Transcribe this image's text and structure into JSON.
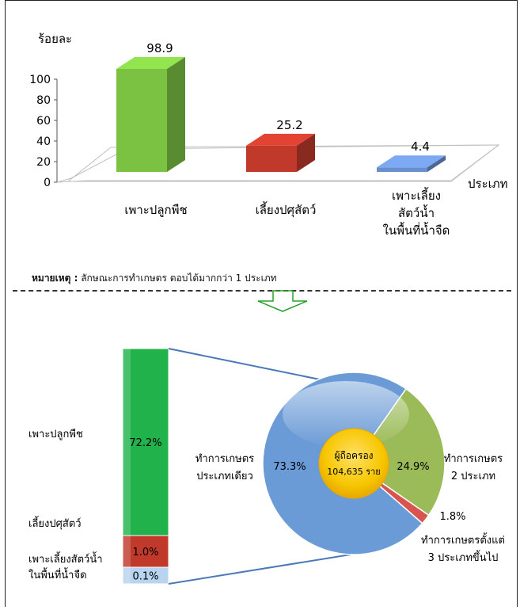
{
  "chart_data": [
    {
      "type": "bar",
      "ylabel": "ร้อยละ",
      "xlabel": "ประเภท",
      "ylim": [
        0,
        100
      ],
      "yticks": [
        0,
        20,
        40,
        60,
        80,
        100
      ],
      "categories": [
        {
          "lines": [
            "เพาะปลูกพืช"
          ]
        },
        {
          "lines": [
            "เลี้ยงปศุสัตว์"
          ]
        },
        {
          "lines": [
            "เพาะเลี้ยง",
            "สัตว์น้ำ",
            "ในพื้นที่น้ำจืด"
          ]
        }
      ],
      "values": [
        98.9,
        25.2,
        4.4
      ],
      "value_labels": [
        "98.9",
        "25.2",
        "4.4"
      ],
      "colors": [
        "#7cc242",
        "#c0392b",
        "#6a8fcf"
      ],
      "grid": false,
      "style": "3d"
    },
    {
      "type": "bar",
      "orientation": "stacked-vertical",
      "categories": [
        {
          "lines": [
            "เพาะปลูกพืช"
          ]
        },
        {
          "lines": [
            "เลี้ยงปศุสัตว์"
          ]
        },
        {
          "lines": [
            "เพาะเลี้ยงสัตว์น้ำ",
            "ในพื้นที่น้ำจืด"
          ]
        }
      ],
      "values": [
        72.2,
        1.0,
        0.1
      ],
      "value_labels": [
        "72.2%",
        "1.0%",
        "0.1%"
      ],
      "colors": [
        "#22b24c",
        "#c0392b",
        "#b8d4f0"
      ]
    },
    {
      "type": "pie",
      "labels": [
        {
          "lines": [
            "ทำการเกษตร",
            "ประเภทเดียว"
          ]
        },
        {
          "lines": [
            "ทำการเกษตร",
            "2 ประเภท"
          ]
        },
        {
          "lines": [
            "ทำการเกษตรตั้งแต่",
            "3 ประเภทขึ้นไป"
          ]
        }
      ],
      "values": [
        73.3,
        24.9,
        1.8
      ],
      "value_labels": [
        "73.3%",
        "24.9%",
        "1.8%"
      ],
      "colors": [
        "#6b9bd6",
        "#9bbb59",
        "#d9534f"
      ],
      "center_label": {
        "title": "ผู้ถือครอง",
        "value": "104,635 ราย"
      }
    }
  ],
  "note": {
    "label": "หมายเหตุ :",
    "text": " ลักษณะการทำเกษตร ตอบได้มากกว่า 1 ประเภท"
  }
}
